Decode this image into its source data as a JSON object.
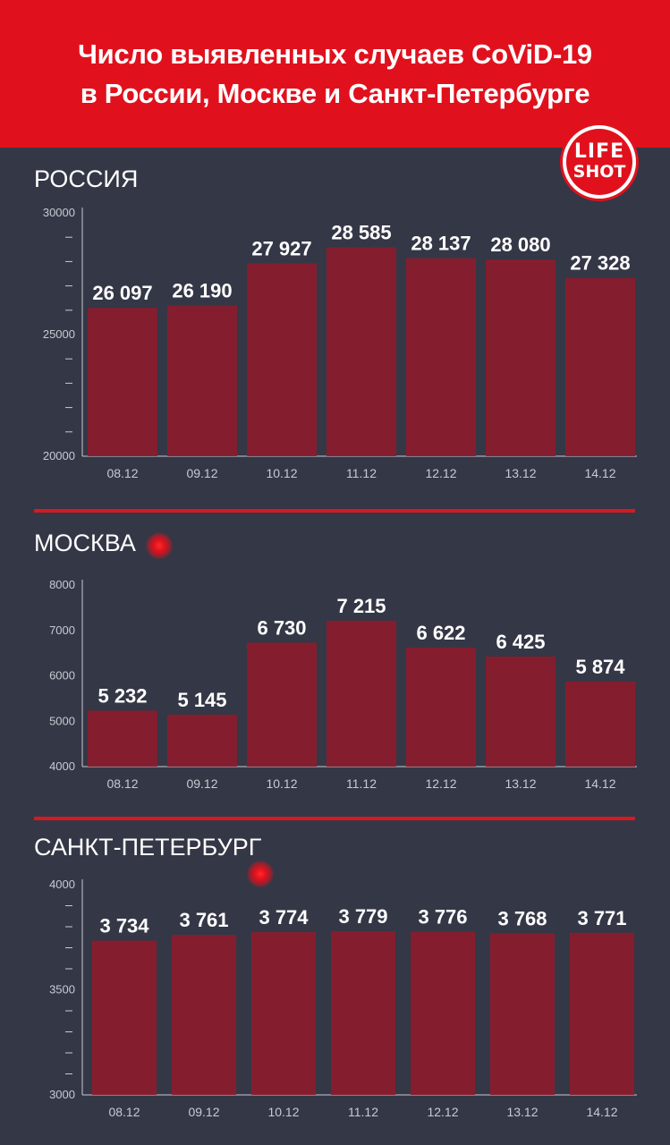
{
  "header": {
    "line1": "Число выявленных случаев CoViD-19",
    "line2": "в России, Москве и Санкт-Петербурге"
  },
  "logo": {
    "line1": "LIFE",
    "line2": "SHOT"
  },
  "colors": {
    "header": "#e0111d",
    "background": "#343746",
    "bar": "#8b1c2c",
    "axis": "#c8cad3"
  },
  "chart_data": [
    {
      "type": "bar",
      "title": "РОССИЯ",
      "categories": [
        "08.12",
        "09.12",
        "10.12",
        "11.12",
        "12.12",
        "13.12",
        "14.12"
      ],
      "values": [
        26097,
        26190,
        27927,
        28585,
        28137,
        28080,
        27328
      ],
      "value_labels": [
        "26 097",
        "26 190",
        "27 927",
        "28 585",
        "28 137",
        "28 080",
        "27 328"
      ],
      "ylim": [
        20000,
        30000
      ],
      "yticks": [
        20000,
        25000,
        30000
      ],
      "minor_ticks_between": 4
    },
    {
      "type": "bar",
      "title": "МОСКВА",
      "categories": [
        "08.12",
        "09.12",
        "10.12",
        "11.12",
        "12.12",
        "13.12",
        "14.12"
      ],
      "values": [
        5232,
        5145,
        6730,
        7215,
        6622,
        6425,
        5874
      ],
      "value_labels": [
        "5 232",
        "5 145",
        "6 730",
        "7 215",
        "6 622",
        "6 425",
        "5 874"
      ],
      "ylim": [
        4000,
        8000
      ],
      "yticks": [
        4000,
        5000,
        6000,
        7000,
        8000
      ],
      "minor_ticks_between": 0
    },
    {
      "type": "bar",
      "title": "САНКТ-ПЕТЕРБУРГ",
      "categories": [
        "08.12",
        "09.12",
        "10.12",
        "11.12",
        "12.12",
        "13.12",
        "14.12"
      ],
      "values": [
        3734,
        3761,
        3774,
        3779,
        3776,
        3768,
        3771
      ],
      "value_labels": [
        "3 734",
        "3 761",
        "3 774",
        "3 779",
        "3 776",
        "3 768",
        "3 771"
      ],
      "ylim": [
        3000,
        4000
      ],
      "yticks": [
        3000,
        3500,
        4000
      ],
      "minor_ticks_between": 4
    }
  ]
}
